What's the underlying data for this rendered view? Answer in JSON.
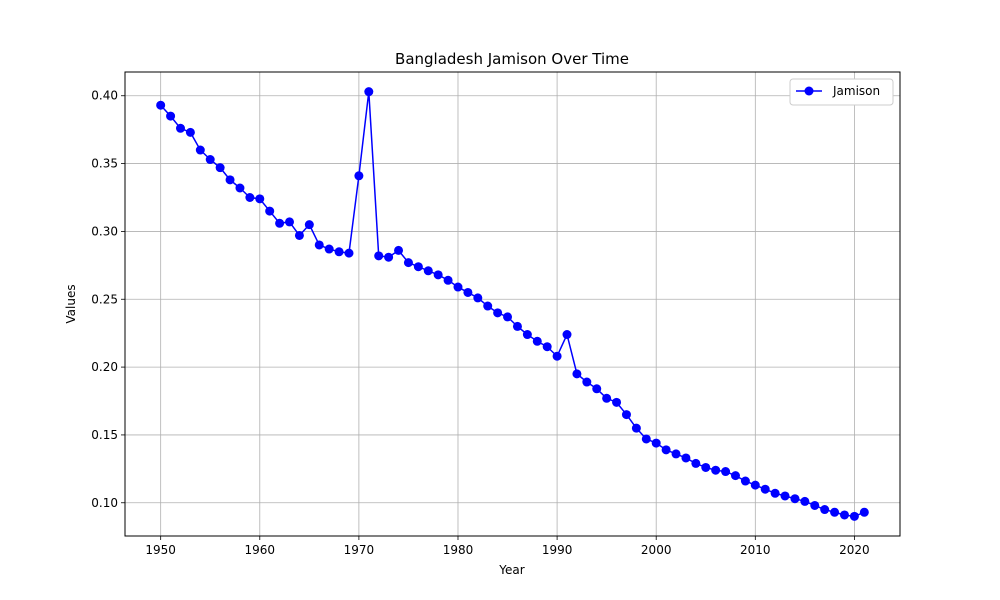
{
  "chart_data": {
    "type": "line",
    "title": "Bangladesh Jamison Over Time",
    "xlabel": "Year",
    "ylabel": "Values",
    "xlim": [
      1946.4,
      2024.6
    ],
    "ylim": [
      0.0755,
      0.4175
    ],
    "xticks": [
      1950,
      1960,
      1970,
      1980,
      1990,
      2000,
      2010,
      2020
    ],
    "yticks": [
      0.1,
      0.15,
      0.2,
      0.25,
      0.3,
      0.35,
      0.4
    ],
    "grid": true,
    "legend_position": "top-right",
    "series": [
      {
        "name": "Jamison",
        "color": "#0000ff",
        "marker": "circle",
        "x": [
          1950,
          1951,
          1952,
          1953,
          1954,
          1955,
          1956,
          1957,
          1958,
          1959,
          1960,
          1961,
          1962,
          1963,
          1964,
          1965,
          1966,
          1967,
          1968,
          1969,
          1970,
          1971,
          1972,
          1973,
          1974,
          1975,
          1976,
          1977,
          1978,
          1979,
          1980,
          1981,
          1982,
          1983,
          1984,
          1985,
          1986,
          1987,
          1988,
          1989,
          1990,
          1991,
          1992,
          1993,
          1994,
          1995,
          1996,
          1997,
          1998,
          1999,
          2000,
          2001,
          2002,
          2003,
          2004,
          2005,
          2006,
          2007,
          2008,
          2009,
          2010,
          2011,
          2012,
          2013,
          2014,
          2015,
          2016,
          2017,
          2018,
          2019,
          2020,
          2021
        ],
        "y": [
          0.393,
          0.385,
          0.376,
          0.373,
          0.36,
          0.353,
          0.347,
          0.338,
          0.332,
          0.325,
          0.324,
          0.315,
          0.306,
          0.307,
          0.297,
          0.305,
          0.29,
          0.287,
          0.285,
          0.284,
          0.341,
          0.403,
          0.282,
          0.281,
          0.286,
          0.277,
          0.274,
          0.271,
          0.268,
          0.264,
          0.259,
          0.255,
          0.251,
          0.245,
          0.24,
          0.237,
          0.23,
          0.224,
          0.219,
          0.215,
          0.208,
          0.224,
          0.195,
          0.189,
          0.184,
          0.177,
          0.174,
          0.165,
          0.155,
          0.147,
          0.144,
          0.139,
          0.136,
          0.133,
          0.129,
          0.126,
          0.124,
          0.123,
          0.12,
          0.116,
          0.113,
          0.11,
          0.107,
          0.105,
          0.103,
          0.101,
          0.098,
          0.095,
          0.093,
          0.091,
          0.09,
          0.093
        ]
      }
    ]
  }
}
